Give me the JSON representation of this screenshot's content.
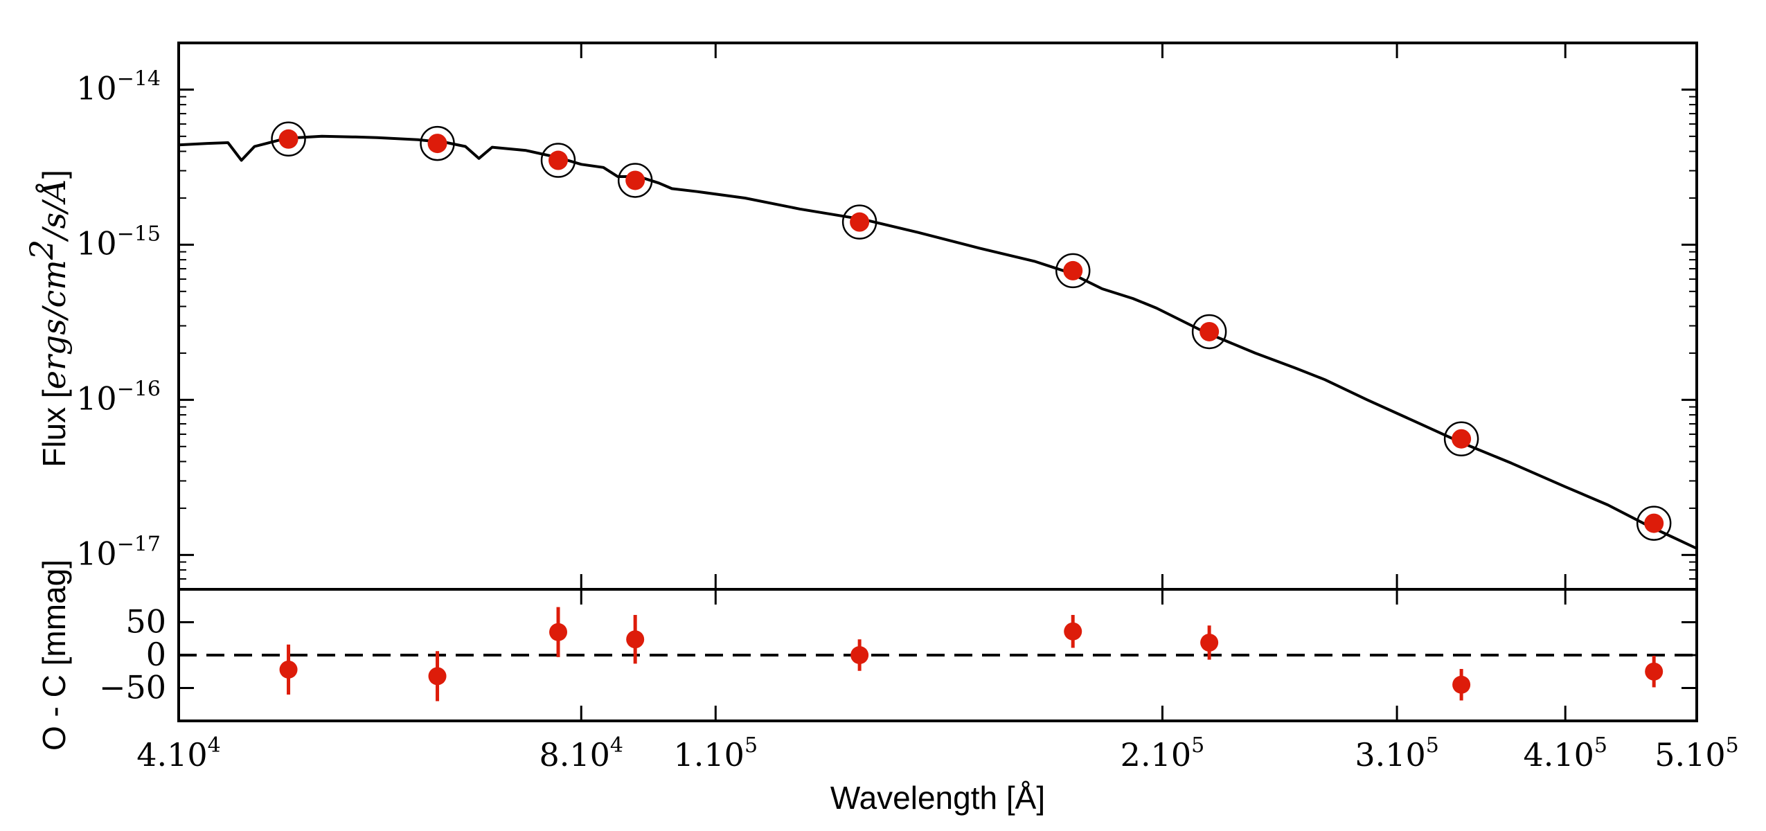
{
  "chart_data": [
    {
      "type": "scatter",
      "name": "sed-panel",
      "title": "",
      "xlabel": "Wavelength [Å]",
      "ylabel_prefix": "Flux [",
      "ylabel_unit": "ergs/cm",
      "ylabel_unit_sup": "2",
      "ylabel_unit_rest": "/s/Å",
      "ylabel_suffix": "]",
      "xscale": "log",
      "yscale": "log",
      "xlim": [
        41000,
        510000
      ],
      "ylim": [
        6e-18,
        2e-14
      ],
      "yticks": [
        {
          "value": 1e-14,
          "base": "10",
          "exp": "−14"
        },
        {
          "value": 1e-15,
          "base": "10",
          "exp": "−15"
        },
        {
          "value": 1e-16,
          "base": "10",
          "exp": "−16"
        },
        {
          "value": 1e-17,
          "base": "10",
          "exp": "−17"
        }
      ],
      "model_curve": {
        "name": "model-sed",
        "color": "#000000",
        "points": [
          [
            41000,
            4.4e-15
          ],
          [
            43000,
            4.5e-15
          ],
          [
            44500,
            4.55e-15
          ],
          [
            45500,
            3.5e-15
          ],
          [
            46500,
            4.3e-15
          ],
          [
            49000,
            4.85e-15
          ],
          [
            52000,
            5e-15
          ],
          [
            55000,
            4.95e-15
          ],
          [
            57000,
            4.9e-15
          ],
          [
            61000,
            4.75e-15
          ],
          [
            64000,
            4.55e-15
          ],
          [
            66000,
            4.3e-15
          ],
          [
            67500,
            3.6e-15
          ],
          [
            69000,
            4.25e-15
          ],
          [
            73000,
            4.05e-15
          ],
          [
            77000,
            3.65e-15
          ],
          [
            80000,
            3.3e-15
          ],
          [
            83000,
            3.15e-15
          ],
          [
            85000,
            2.75e-15
          ],
          [
            88000,
            2.75e-15
          ],
          [
            91000,
            2.5e-15
          ],
          [
            93000,
            2.3e-15
          ],
          [
            97000,
            2.2e-15
          ],
          [
            105000,
            2e-15
          ],
          [
            115000,
            1.7e-15
          ],
          [
            128000,
            1.45e-15
          ],
          [
            140000,
            1.2e-15
          ],
          [
            155000,
            9.5e-16
          ],
          [
            170000,
            7.8e-16
          ],
          [
            180000,
            6.6e-16
          ],
          [
            190000,
            5.2e-16
          ],
          [
            200000,
            4.5e-16
          ],
          [
            208000,
            3.9e-16
          ],
          [
            225000,
            2.75e-16
          ],
          [
            245000,
            2e-16
          ],
          [
            262000,
            1.6e-16
          ],
          [
            275000,
            1.35e-16
          ],
          [
            295000,
            1e-16
          ],
          [
            320000,
            7.2e-17
          ],
          [
            345000,
            5.3e-17
          ],
          [
            375000,
            3.9e-17
          ],
          [
            410000,
            2.75e-17
          ],
          [
            440000,
            2.1e-17
          ],
          [
            470000,
            1.55e-17
          ],
          [
            510000,
            1.1e-17
          ]
        ]
      },
      "series": [
        {
          "name": "observed-flux",
          "color": "#dd1c0a",
          "marker": "filled-circle",
          "x": [
            49200,
            63000,
            77000,
            87500,
            127000,
            181000,
            227000,
            345000,
            475000
          ],
          "y": [
            4.8e-15,
            4.5e-15,
            3.5e-15,
            2.6e-15,
            1.4e-15,
            6.8e-16,
            2.75e-16,
            5.6e-17,
            1.6e-17
          ]
        },
        {
          "name": "synthetic-flux",
          "color": "#000000",
          "marker": "open-circle",
          "x": [
            49200,
            63000,
            77000,
            87500,
            127000,
            181000,
            227000,
            345000,
            475000
          ],
          "y": [
            4.8e-15,
            4.5e-15,
            3.5e-15,
            2.6e-15,
            1.4e-15,
            6.8e-16,
            2.75e-16,
            5.6e-17,
            1.6e-17
          ]
        }
      ]
    },
    {
      "type": "scatter",
      "name": "residual-panel",
      "ylabel": "O - C [mmag]",
      "xlabel": "Wavelength [Å]",
      "xscale": "log",
      "xlim": [
        41000,
        510000
      ],
      "ylim": [
        -100,
        100
      ],
      "yticks": [
        {
          "value": 50,
          "label": "50"
        },
        {
          "value": 0,
          "label": "0"
        },
        {
          "value": -50,
          "label": "−50"
        }
      ],
      "zero_line": {
        "value": 0,
        "style": "dashed"
      },
      "xticks": [
        {
          "value": 41000,
          "base": "4.10",
          "exp": "4"
        },
        {
          "value": 80000,
          "base": "8.10",
          "exp": "4"
        },
        {
          "value": 100000,
          "base": "1.10",
          "exp": "5"
        },
        {
          "value": 210000,
          "base": "2.10",
          "exp": "5"
        },
        {
          "value": 310000,
          "base": "3.10",
          "exp": "5"
        },
        {
          "value": 410000,
          "base": "4.10",
          "exp": "5"
        },
        {
          "value": 510000,
          "base": "5.10",
          "exp": "5"
        }
      ],
      "series": [
        {
          "name": "residuals",
          "color": "#dd1c0a",
          "x": [
            49200,
            63000,
            77000,
            87500,
            127000,
            181000,
            227000,
            345000,
            475000
          ],
          "y": [
            -22,
            -32,
            35,
            24,
            0,
            36,
            19,
            -45,
            -25
          ],
          "yerr": [
            38,
            38,
            38,
            37,
            24,
            25,
            26,
            24,
            24
          ]
        }
      ]
    }
  ]
}
